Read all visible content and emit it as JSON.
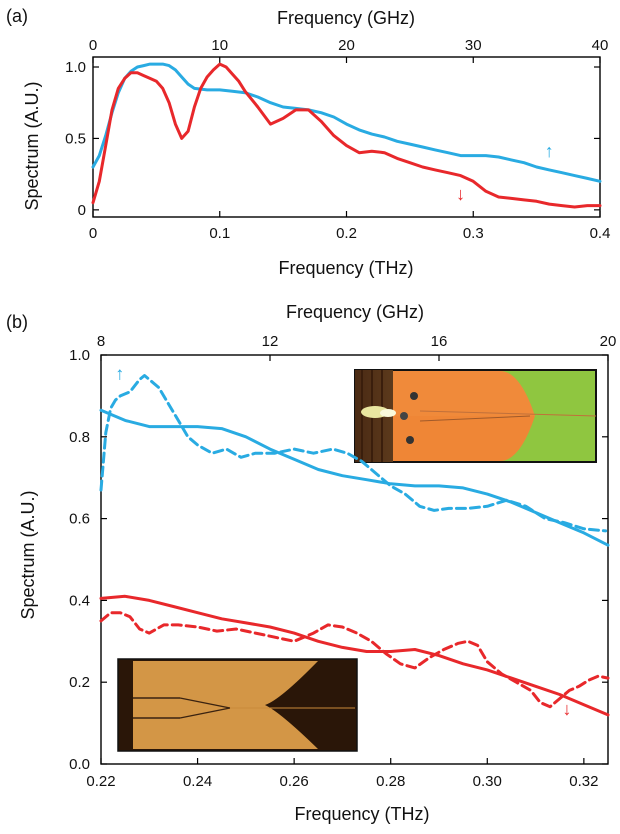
{
  "colors": {
    "blue": "#29abe2",
    "red": "#e8282b"
  },
  "chart_data": [
    {
      "panel_label": "(a)",
      "type": "line",
      "xlabel": "Frequency (THz)",
      "x2label": "Frequency (GHz)",
      "ylabel": "Spectrum (A.U.)",
      "xlim": [
        0,
        0.4
      ],
      "x2lim": [
        0,
        40
      ],
      "ylim": [
        -0.05,
        1.07
      ],
      "xticks": [
        "0",
        "0.1",
        "0.2",
        "0.3",
        "0.4"
      ],
      "x2ticks": [
        "0",
        "10",
        "20",
        "30",
        "40"
      ],
      "yticks": [
        "0",
        "0.5",
        "1.0"
      ],
      "grid": false,
      "annotations": [
        {
          "text": "↑",
          "series": "blue",
          "x": 0.36,
          "y": 0.37
        },
        {
          "text": "↓",
          "series": "red",
          "x": 0.29,
          "y": 0.07
        }
      ],
      "series": [
        {
          "color": "blue",
          "style": "solid",
          "x": [
            0,
            0.005,
            0.01,
            0.015,
            0.02,
            0.025,
            0.03,
            0.035,
            0.04,
            0.045,
            0.05,
            0.055,
            0.06,
            0.065,
            0.07,
            0.075,
            0.08,
            0.09,
            0.1,
            0.11,
            0.12,
            0.13,
            0.14,
            0.15,
            0.16,
            0.17,
            0.18,
            0.19,
            0.2,
            0.21,
            0.22,
            0.23,
            0.24,
            0.25,
            0.26,
            0.27,
            0.28,
            0.29,
            0.3,
            0.31,
            0.32,
            0.33,
            0.34,
            0.35,
            0.36,
            0.37,
            0.38,
            0.39,
            0.4
          ],
          "y": [
            0.3,
            0.38,
            0.52,
            0.68,
            0.82,
            0.92,
            0.97,
            1.0,
            1.01,
            1.02,
            1.02,
            1.02,
            1.01,
            0.98,
            0.93,
            0.88,
            0.85,
            0.84,
            0.84,
            0.83,
            0.82,
            0.79,
            0.75,
            0.72,
            0.71,
            0.7,
            0.68,
            0.65,
            0.6,
            0.56,
            0.53,
            0.51,
            0.48,
            0.46,
            0.44,
            0.42,
            0.4,
            0.38,
            0.38,
            0.38,
            0.37,
            0.35,
            0.33,
            0.3,
            0.28,
            0.26,
            0.24,
            0.22,
            0.2
          ]
        },
        {
          "color": "red",
          "style": "solid",
          "x": [
            0,
            0.005,
            0.01,
            0.015,
            0.02,
            0.025,
            0.03,
            0.035,
            0.04,
            0.045,
            0.05,
            0.055,
            0.06,
            0.065,
            0.07,
            0.075,
            0.08,
            0.085,
            0.09,
            0.095,
            0.1,
            0.105,
            0.11,
            0.115,
            0.12,
            0.13,
            0.14,
            0.15,
            0.16,
            0.17,
            0.18,
            0.19,
            0.2,
            0.21,
            0.22,
            0.23,
            0.24,
            0.25,
            0.26,
            0.27,
            0.28,
            0.29,
            0.3,
            0.31,
            0.32,
            0.33,
            0.34,
            0.35,
            0.36,
            0.37,
            0.38,
            0.39,
            0.4
          ],
          "y": [
            0.05,
            0.2,
            0.45,
            0.7,
            0.85,
            0.92,
            0.96,
            0.96,
            0.94,
            0.92,
            0.9,
            0.85,
            0.75,
            0.6,
            0.5,
            0.55,
            0.72,
            0.85,
            0.93,
            0.98,
            1.02,
            1.0,
            0.95,
            0.9,
            0.83,
            0.72,
            0.6,
            0.64,
            0.7,
            0.7,
            0.62,
            0.52,
            0.45,
            0.4,
            0.41,
            0.4,
            0.36,
            0.33,
            0.3,
            0.28,
            0.26,
            0.24,
            0.2,
            0.13,
            0.09,
            0.08,
            0.07,
            0.06,
            0.04,
            0.03,
            0.02,
            0.03,
            0.03
          ]
        }
      ]
    },
    {
      "panel_label": "(b)",
      "type": "line",
      "xlabel": "Frequency (THz)",
      "x2label": "Frequency (GHz)",
      "ylabel": "Spectrum (A.U.)",
      "xlim": [
        0.22,
        0.325
      ],
      "x2lim": [
        8,
        20
      ],
      "ylim": [
        0,
        1.0
      ],
      "xticks": [
        "0.22",
        "0.24",
        "0.26",
        "0.28",
        "0.30",
        "0.32"
      ],
      "x2ticks": [
        "8",
        "12",
        "16",
        "20"
      ],
      "yticks": [
        "0.0",
        "0.2",
        "0.4",
        "0.6",
        "0.8",
        "1.0"
      ],
      "grid": false,
      "annotations": [
        {
          "text": "↑",
          "series": "blue-dashed",
          "x": 0.2239,
          "y": 0.94
        },
        {
          "text": "↓",
          "series": "red-solid",
          "x": 0.3165,
          "y": 0.12
        }
      ],
      "series": [
        {
          "color": "blue",
          "style": "solid",
          "x": [
            0.22,
            0.225,
            0.23,
            0.235,
            0.24,
            0.245,
            0.25,
            0.255,
            0.26,
            0.265,
            0.27,
            0.275,
            0.28,
            0.285,
            0.29,
            0.295,
            0.3,
            0.305,
            0.31,
            0.315,
            0.32,
            0.325
          ],
          "y": [
            0.865,
            0.84,
            0.825,
            0.825,
            0.825,
            0.82,
            0.8,
            0.77,
            0.745,
            0.72,
            0.705,
            0.695,
            0.685,
            0.68,
            0.68,
            0.675,
            0.66,
            0.64,
            0.615,
            0.59,
            0.565,
            0.535
          ]
        },
        {
          "color": "blue",
          "style": "dashed",
          "x": [
            0.22,
            0.2205,
            0.221,
            0.222,
            0.223,
            0.224,
            0.226,
            0.228,
            0.229,
            0.23,
            0.232,
            0.234,
            0.236,
            0.238,
            0.24,
            0.243,
            0.246,
            0.249,
            0.252,
            0.256,
            0.26,
            0.264,
            0.268,
            0.271,
            0.274,
            0.277,
            0.28,
            0.283,
            0.286,
            0.289,
            0.292,
            0.296,
            0.3,
            0.304,
            0.308,
            0.312,
            0.316,
            0.32,
            0.3245
          ],
          "y": [
            0.67,
            0.74,
            0.81,
            0.87,
            0.89,
            0.9,
            0.91,
            0.94,
            0.95,
            0.94,
            0.92,
            0.88,
            0.84,
            0.8,
            0.78,
            0.76,
            0.77,
            0.75,
            0.76,
            0.76,
            0.77,
            0.76,
            0.77,
            0.76,
            0.74,
            0.71,
            0.68,
            0.66,
            0.63,
            0.62,
            0.625,
            0.625,
            0.63,
            0.645,
            0.63,
            0.6,
            0.59,
            0.575,
            0.57
          ]
        },
        {
          "color": "red",
          "style": "solid",
          "x": [
            0.22,
            0.225,
            0.23,
            0.235,
            0.24,
            0.245,
            0.25,
            0.255,
            0.26,
            0.265,
            0.27,
            0.275,
            0.28,
            0.285,
            0.29,
            0.295,
            0.3,
            0.305,
            0.31,
            0.315,
            0.32,
            0.325
          ],
          "y": [
            0.405,
            0.41,
            0.4,
            0.385,
            0.37,
            0.355,
            0.345,
            0.335,
            0.32,
            0.3,
            0.285,
            0.275,
            0.275,
            0.28,
            0.265,
            0.245,
            0.23,
            0.21,
            0.19,
            0.17,
            0.145,
            0.12
          ]
        },
        {
          "color": "red",
          "style": "dashed",
          "x": [
            0.22,
            0.222,
            0.224,
            0.226,
            0.228,
            0.23,
            0.233,
            0.236,
            0.24,
            0.244,
            0.248,
            0.252,
            0.256,
            0.26,
            0.264,
            0.267,
            0.27,
            0.273,
            0.276,
            0.279,
            0.282,
            0.285,
            0.288,
            0.291,
            0.294,
            0.296,
            0.298,
            0.3,
            0.303,
            0.306,
            0.309,
            0.311,
            0.313,
            0.315,
            0.317,
            0.319,
            0.321,
            0.323,
            0.325
          ],
          "y": [
            0.35,
            0.37,
            0.37,
            0.36,
            0.33,
            0.32,
            0.34,
            0.34,
            0.335,
            0.325,
            0.33,
            0.32,
            0.31,
            0.3,
            0.32,
            0.34,
            0.335,
            0.32,
            0.3,
            0.27,
            0.245,
            0.235,
            0.26,
            0.28,
            0.295,
            0.3,
            0.29,
            0.25,
            0.22,
            0.2,
            0.18,
            0.15,
            0.14,
            0.16,
            0.18,
            0.19,
            0.205,
            0.215,
            0.21
          ]
        }
      ]
    }
  ]
}
